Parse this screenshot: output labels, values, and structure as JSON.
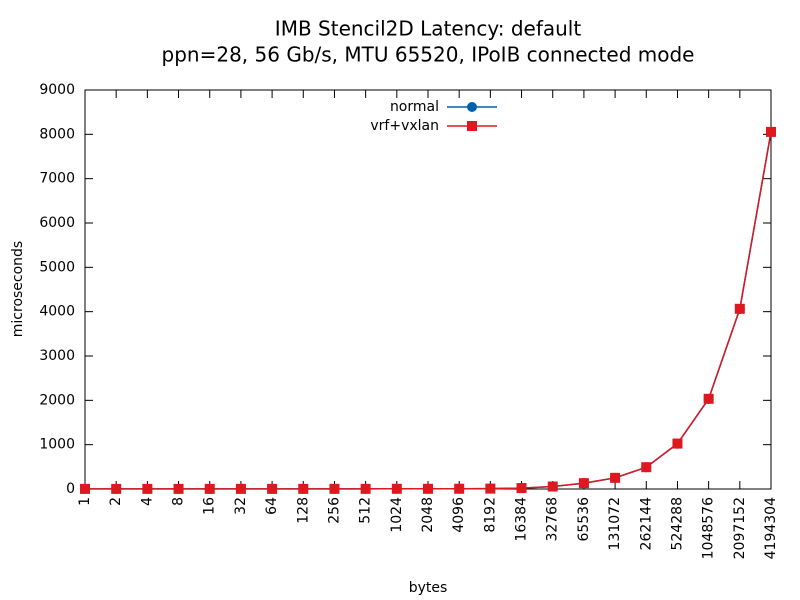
{
  "chart_data": {
    "type": "line",
    "title": "IMB Stencil2D Latency: default",
    "subtitle": "ppn=28, 56 Gb/s, MTU 65520, IPoIB connected mode",
    "x_label": "bytes",
    "y_label": "microseconds",
    "categories": [
      "1",
      "2",
      "4",
      "8",
      "16",
      "32",
      "64",
      "128",
      "256",
      "512",
      "1024",
      "2048",
      "4096",
      "8192",
      "16384",
      "32768",
      "65536",
      "131072",
      "262144",
      "524288",
      "1048576",
      "2097152",
      "4194304"
    ],
    "series": [
      {
        "name": "normal",
        "color": "#0060ad",
        "marker": "circle",
        "values": [
          3,
          3,
          3,
          3,
          3,
          3,
          3,
          3,
          4,
          4,
          5,
          5,
          6,
          9,
          20,
          55,
          130,
          250,
          490,
          1020,
          2030,
          4060,
          8050
        ]
      },
      {
        "name": "vrf+vxlan",
        "color": "#dd181f",
        "marker": "square",
        "values": [
          3,
          3,
          3,
          3,
          3,
          3,
          3,
          3,
          4,
          4,
          5,
          5,
          6,
          9,
          21,
          56,
          132,
          252,
          492,
          1025,
          2035,
          4065,
          8055
        ]
      }
    ],
    "ylim": [
      0,
      9000
    ],
    "yticks": [
      0,
      1000,
      2000,
      3000,
      4000,
      5000,
      6000,
      7000,
      8000,
      9000
    ],
    "legend": "top-center"
  }
}
